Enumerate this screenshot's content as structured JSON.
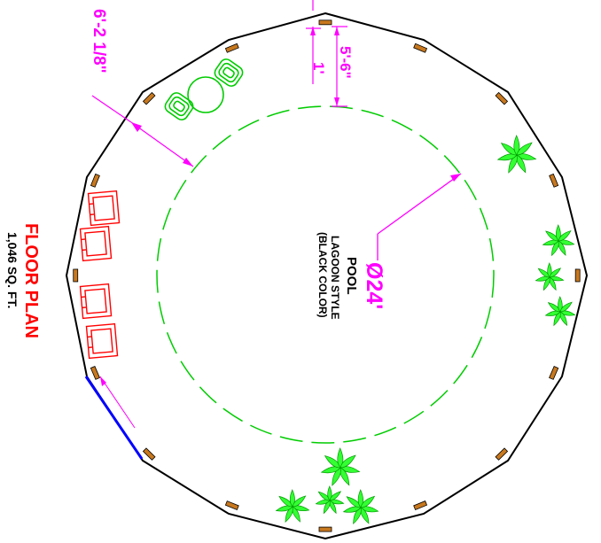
{
  "plan": {
    "title": "FLOOR PLAN",
    "area": "1,046 SQ. FT."
  },
  "pool": {
    "diameter": "Ø24'",
    "line1": "POOL",
    "line2": "LAGOON STYLE",
    "line3": "(BLACK COLOR)"
  },
  "dimensions": {
    "wall_to_pool": "6'-2 1/8\"",
    "post_to_pool": "5'-6\"",
    "post_width": "1'"
  },
  "colors": {
    "wall": "#000000",
    "pool_outline": "#00cc00",
    "dimension": "#ff00ff",
    "furniture": "#ff0000",
    "plants": "#33ff33",
    "posts": "#c8781e",
    "door": "#0000ff",
    "title": "#ff0000"
  },
  "icons": {
    "post": "wood-post-icon",
    "chair": "lounge-chair-icon",
    "table_set": "table-and-chairs-icon",
    "plant": "palm-plant-icon",
    "door": "sliding-door-icon"
  }
}
